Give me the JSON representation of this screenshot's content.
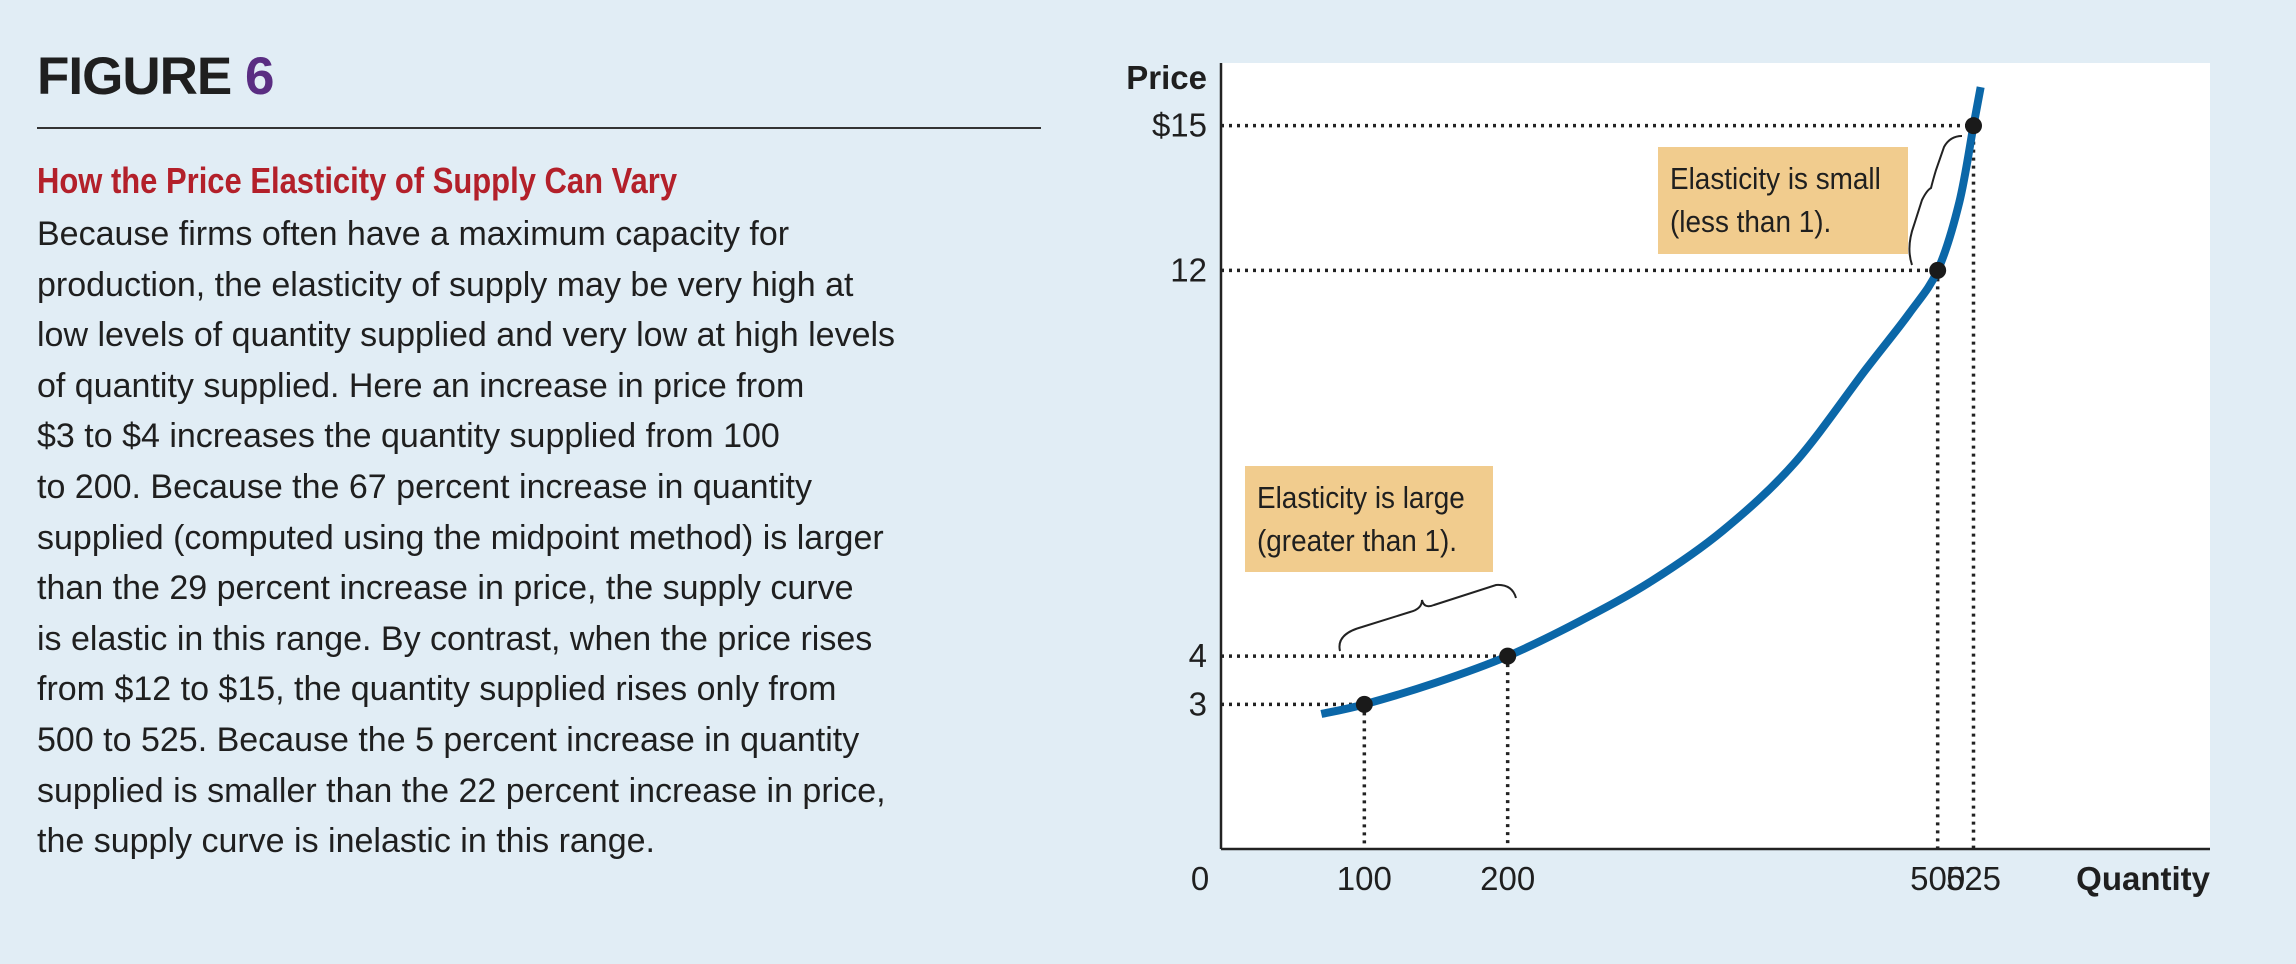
{
  "figure": {
    "label": "FIGURE",
    "number": "6",
    "title": "How the Price Elasticity of Supply Can Vary",
    "body_lines": [
      "Because firms often have a maximum capacity for",
      "production, the elasticity of supply may be very high at",
      "low levels of quantity supplied and very low at high levels",
      "of quantity supplied. Here an increase in price from",
      "$3 to $4 increases the quantity supplied from 100",
      "to 200. Because the 67 percent increase in quantity",
      "supplied (computed using the midpoint method) is larger",
      "than the 29 percent increase in price, the supply curve",
      "is elastic in this range. By contrast, when the price rises",
      "from $12 to $15, the quantity supplied rises only from",
      "500 to 525. Because the 5 percent increase in quantity",
      "supplied is smaller than the 22 percent increase in price,",
      "the supply curve is inelastic in this range."
    ]
  },
  "colors": {
    "heading_accent": "#5a2d82",
    "subtitle": "#b3202a",
    "curve": "#0b67a8",
    "annotation_bg": "#f1cc8e",
    "background": "#e1edf5"
  },
  "annotations": {
    "small": [
      "Elasticity is small",
      "(less than 1)."
    ],
    "large": [
      "Elasticity is large",
      "(greater than 1)."
    ]
  },
  "chart_data": {
    "type": "line",
    "title": "",
    "xlabel": "Quantity",
    "ylabel": "Price",
    "origin_label": "0",
    "xlim": [
      0,
      690
    ],
    "ylim": [
      0,
      16.3
    ],
    "x_ticks": [
      {
        "value": 100,
        "label": "100"
      },
      {
        "value": 200,
        "label": "200"
      },
      {
        "value": 500,
        "label": "500"
      },
      {
        "value": 525,
        "label": "525"
      }
    ],
    "y_ticks": [
      {
        "value": 3,
        "label": "3"
      },
      {
        "value": 4,
        "label": "4"
      },
      {
        "value": 12,
        "label": "12"
      },
      {
        "value": 15,
        "label": "$15"
      }
    ],
    "series": [
      {
        "name": "Supply",
        "x": [
          70,
          100,
          150,
          200,
          250,
          300,
          350,
          400,
          450,
          480,
          500,
          515,
          525,
          530
        ],
        "y": [
          2.8,
          3.0,
          3.45,
          4.0,
          4.72,
          5.55,
          6.6,
          8.0,
          9.95,
          11.1,
          12.0,
          13.4,
          15.0,
          15.8
        ]
      }
    ],
    "points": [
      {
        "x": 100,
        "y": 3
      },
      {
        "x": 200,
        "y": 4
      },
      {
        "x": 500,
        "y": 12
      },
      {
        "x": 525,
        "y": 15
      }
    ]
  }
}
